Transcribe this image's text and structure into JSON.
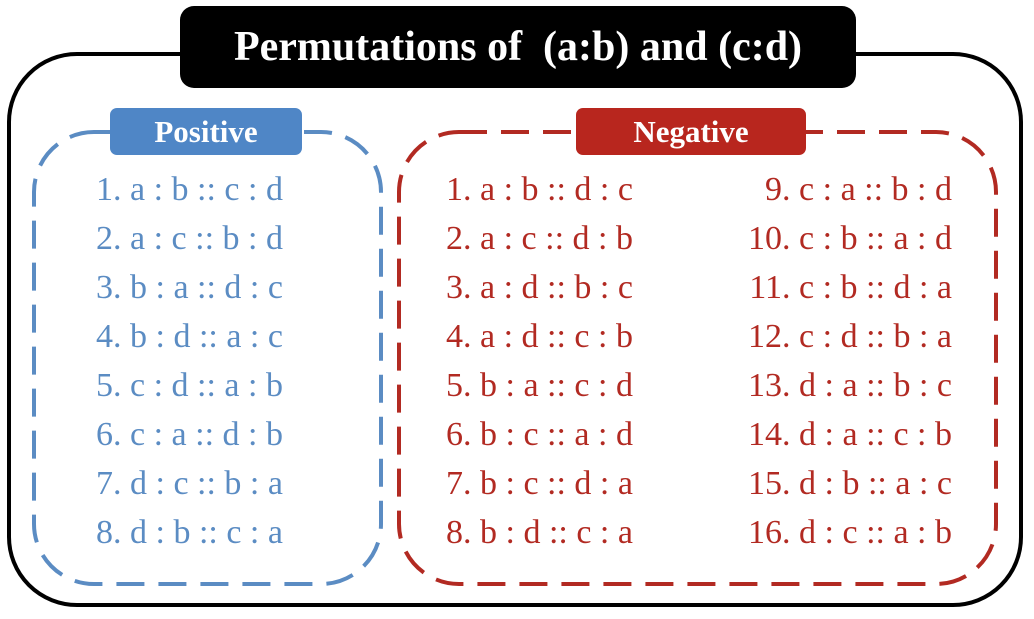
{
  "title": "Permutations of  (a:b) and (c:d)",
  "colors": {
    "outer_border": "#000000",
    "title_bg": "#000000",
    "title_text": "#ffffff",
    "positive": "#5B8CC3",
    "positive_tag_bg": "#4F86C6",
    "negative": "#B22A22",
    "negative_tag_bg": "#B8261E"
  },
  "positive": {
    "label": "Positive",
    "items": [
      "1. a : b :: c : d",
      "2. a : c :: b : d",
      "3. b : a :: d : c",
      "4. b : d :: a : c",
      "5. c : d :: a : b",
      "6. c : a :: d : b",
      "7. d : c :: b : a",
      "8. d : b :: c : a"
    ]
  },
  "negative": {
    "label": "Negative",
    "column1": [
      "1. a : b :: d : c",
      "2. a : c :: d : b",
      "3. a : d :: b : c",
      "4. a : d :: c : b",
      "5. b : a :: c : d",
      "6. b : c :: a : d",
      "7. b : c :: d : a",
      "8. b : d :: c : a"
    ],
    "column2": [
      "9. c : a :: b : d",
      "10. c : b :: a : d",
      "11. c : b :: d : a",
      "12. c : d :: b : a",
      "13. d : a :: b : c",
      "14. d : a :: c : b",
      "15. d : b :: a : c",
      "16. d : c :: a : b"
    ]
  }
}
